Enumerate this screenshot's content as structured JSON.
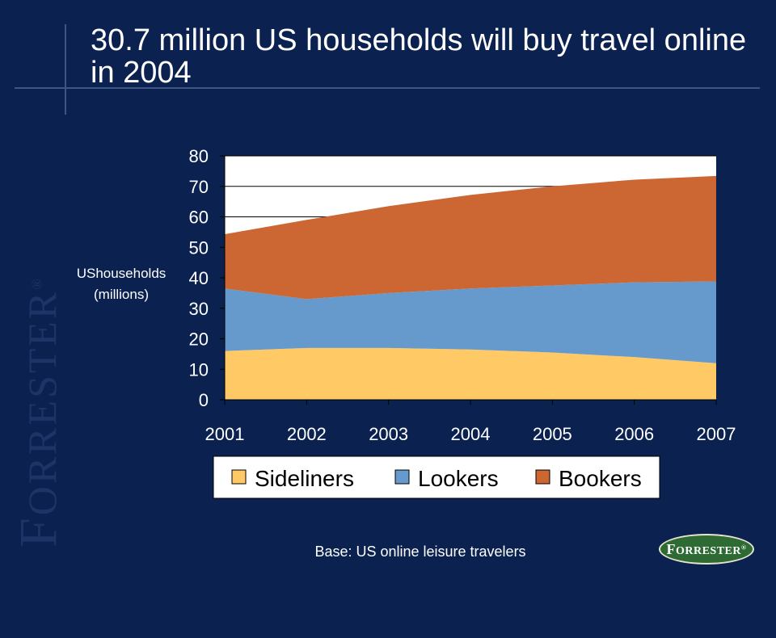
{
  "slide": {
    "title": "30.7 million US households will buy travel online in 2004",
    "footer": "Base: US online leisure travelers",
    "brand": "Forrester",
    "brand_mark": "®"
  },
  "colors": {
    "background": "#0b2150",
    "sideliners": "#ffc966",
    "lookers": "#6699cc",
    "bookers": "#cc6633",
    "plot_bg": "#ffffff",
    "logo_green": "#2e6a33"
  },
  "chart_data": {
    "type": "area",
    "stacked": true,
    "title": "",
    "xlabel": "",
    "ylabel": "UShouseholds (millions)",
    "ylabel_lines": [
      "UShouseholds",
      "(millions)"
    ],
    "categories": [
      "2001",
      "2002",
      "2003",
      "2004",
      "2005",
      "2006",
      "2007"
    ],
    "ylim": [
      0,
      80
    ],
    "yticks": [
      0,
      10,
      20,
      30,
      40,
      50,
      60,
      70,
      80
    ],
    "grid": "horizontal",
    "legend_position": "bottom",
    "series": [
      {
        "name": "Sideliners",
        "values": [
          16,
          17,
          17,
          16.5,
          15.5,
          14,
          12
        ],
        "color": "#ffc966"
      },
      {
        "name": "Lookers",
        "values": [
          20.5,
          16,
          18,
          20,
          22,
          24.5,
          26.8
        ],
        "color": "#6699cc"
      },
      {
        "name": "Bookers",
        "values": [
          17.8,
          26,
          28.5,
          30.7,
          32.5,
          33.7,
          34.6
        ],
        "color": "#cc6633"
      }
    ]
  }
}
